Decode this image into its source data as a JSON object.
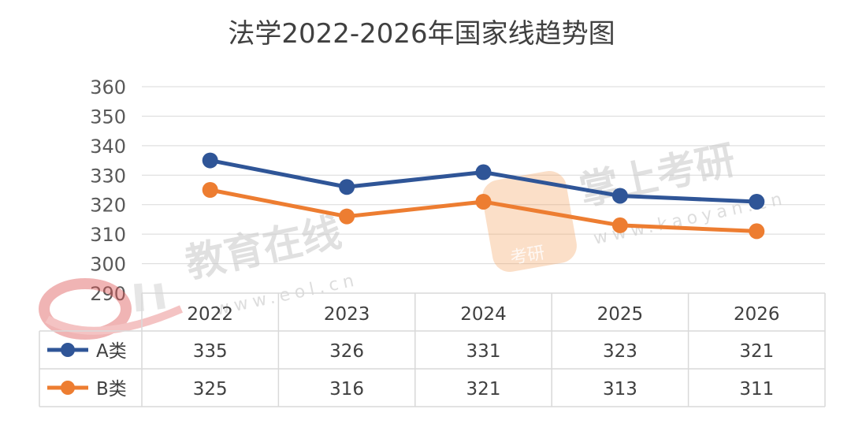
{
  "chart_data": {
    "type": "line",
    "title": "法学2022-2026年国家线趋势图",
    "categories": [
      "2022",
      "2023",
      "2024",
      "2025",
      "2026"
    ],
    "ylim": [
      290,
      360
    ],
    "yticks": [
      290,
      300,
      310,
      320,
      330,
      340,
      350,
      360
    ],
    "grid": true,
    "legend": "data-table",
    "series": [
      {
        "name": "A类",
        "values": [
          335,
          326,
          331,
          323,
          321
        ],
        "color": "#2f5597"
      },
      {
        "name": "B类",
        "values": [
          325,
          316,
          321,
          313,
          311
        ],
        "color": "#ed7d31"
      }
    ]
  },
  "watermarks": {
    "eol_text": "教育在线",
    "eol_url": "www.eol.cn",
    "kaoyan_text": "掌上考研",
    "kaoyan_url": "www.kaoyan.cn",
    "kaoyan_badge": "考研"
  }
}
